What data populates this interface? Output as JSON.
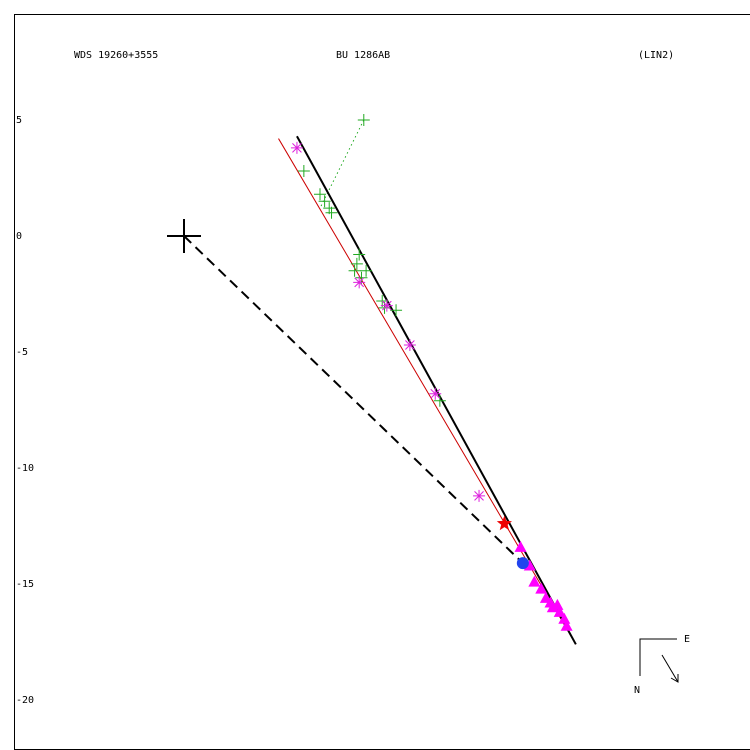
{
  "header": {
    "left": "WDS 19260+3555",
    "center": "BU 1286AB",
    "right": "(LIN2)"
  },
  "compass": {
    "east": "E",
    "north": "N"
  },
  "chart_data": {
    "type": "scatter",
    "title": "",
    "xlabel": "",
    "ylabel": "",
    "y_ticks": [
      "5",
      "0",
      "-5",
      "-10",
      "-15",
      "-20"
    ],
    "grid": false,
    "primary": {
      "x": 0,
      "y": 0
    },
    "fitted_line": {
      "from": [
        4.9,
        4.3
      ],
      "to": [
        17.0,
        -17.6
      ],
      "color": "#000000"
    },
    "alt_line": {
      "from": [
        4.1,
        4.2
      ],
      "to": [
        17.0,
        -17.6
      ],
      "color": "#cc0000"
    },
    "dashed_line": {
      "from": [
        0,
        0
      ],
      "to": [
        14.7,
        -14.1
      ]
    },
    "dotted_line": {
      "from": [
        7.8,
        5.0
      ],
      "to": [
        5.9,
        1.2
      ],
      "color": "#22aa22"
    },
    "plus_points": {
      "color": "#22aa22",
      "points": [
        [
          7.8,
          5.0
        ],
        [
          5.2,
          2.8
        ],
        [
          5.9,
          1.8
        ],
        [
          6.1,
          1.5
        ],
        [
          6.3,
          1.2
        ],
        [
          6.4,
          1.0
        ],
        [
          7.6,
          -0.8
        ],
        [
          7.5,
          -1.2
        ],
        [
          7.4,
          -1.5
        ],
        [
          7.9,
          -1.5
        ],
        [
          7.7,
          -1.8
        ],
        [
          8.6,
          -2.8
        ],
        [
          8.7,
          -3.1
        ],
        [
          9.2,
          -3.2
        ],
        [
          11.1,
          -7.1
        ]
      ]
    },
    "asterisk_points": {
      "color": "#dd22dd",
      "points": [
        [
          4.9,
          3.8
        ],
        [
          7.6,
          -2.0
        ],
        [
          8.8,
          -3.0
        ],
        [
          9.8,
          -4.7
        ],
        [
          10.9,
          -6.8
        ],
        [
          12.8,
          -11.2
        ]
      ]
    },
    "triangle_points": {
      "color": "#ff00ff",
      "points": [
        [
          14.6,
          -13.4
        ],
        [
          15.0,
          -14.2
        ],
        [
          15.2,
          -14.9
        ],
        [
          15.5,
          -15.2
        ],
        [
          15.7,
          -15.6
        ],
        [
          15.9,
          -15.8
        ],
        [
          16.0,
          -16.0
        ],
        [
          16.2,
          -15.9
        ],
        [
          16.3,
          -16.2
        ],
        [
          16.5,
          -16.5
        ],
        [
          16.6,
          -16.8
        ]
      ]
    },
    "star_point": {
      "x": 13.9,
      "y": -12.4,
      "color": "#ee0000"
    },
    "circle_point": {
      "x": 14.7,
      "y": -14.1,
      "color": "#2244ee"
    }
  }
}
